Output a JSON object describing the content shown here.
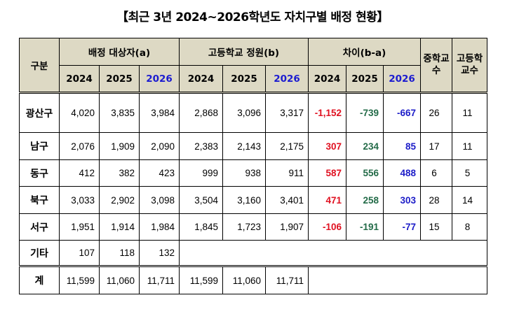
{
  "title": "【최근 3년 2024~2026학년도 자치구별 배정 현황】",
  "headers": {
    "category": "구분",
    "group_a": "배정 대상자(a)",
    "group_b": "고등학교 정원(b)",
    "group_diff": "차이(b-a)",
    "middle_count": "중학교수",
    "high_count": "고등학교수",
    "years": [
      "2024",
      "2025",
      "2026"
    ]
  },
  "rows": [
    {
      "name": "광산구",
      "a": [
        "4,020",
        "3,835",
        "3,984"
      ],
      "b": [
        "2,868",
        "3,096",
        "3,317"
      ],
      "diff": [
        "-1,152",
        "-739",
        "-667"
      ],
      "ms": "26",
      "hs": "11"
    },
    {
      "name": "남구",
      "a": [
        "2,076",
        "1,909",
        "2,090"
      ],
      "b": [
        "2,383",
        "2,143",
        "2,175"
      ],
      "diff": [
        "307",
        "234",
        "85"
      ],
      "ms": "17",
      "hs": "11"
    },
    {
      "name": "동구",
      "a": [
        "412",
        "382",
        "423"
      ],
      "b": [
        "999",
        "938",
        "911"
      ],
      "diff": [
        "587",
        "556",
        "488"
      ],
      "ms": "6",
      "hs": "5"
    },
    {
      "name": "북구",
      "a": [
        "3,033",
        "2,902",
        "3,098"
      ],
      "b": [
        "3,504",
        "3,160",
        "3,401"
      ],
      "diff": [
        "471",
        "258",
        "303"
      ],
      "ms": "28",
      "hs": "14"
    },
    {
      "name": "서구",
      "a": [
        "1,951",
        "1,914",
        "1,984"
      ],
      "b": [
        "1,845",
        "1,723",
        "1,907"
      ],
      "diff": [
        "-106",
        "-191",
        "-77"
      ],
      "ms": "15",
      "hs": "8"
    }
  ],
  "other": {
    "name": "기타",
    "a": [
      "107",
      "118",
      "132"
    ]
  },
  "total": {
    "name": "계",
    "a": [
      "11,599",
      "11,060",
      "11,711"
    ],
    "b": [
      "11,599",
      "11,060",
      "11,711"
    ]
  },
  "colors": {
    "diff_2024": "#e01020",
    "diff_2025": "#236b48",
    "diff_2026": "#1c1cc8",
    "header_bg": "#ddd9c4",
    "year_2026": "#1c1cd0"
  }
}
